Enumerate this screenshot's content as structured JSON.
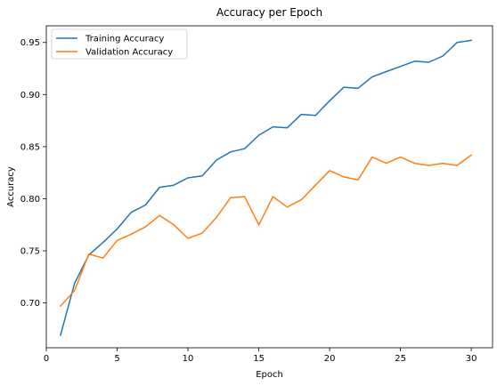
{
  "chart_data": {
    "type": "line",
    "title": "Accuracy per Epoch",
    "xlabel": "Epoch",
    "ylabel": "Accuracy",
    "xlim": [
      0,
      31.5
    ],
    "ylim": [
      0.657,
      0.966
    ],
    "xticks": [
      0,
      5,
      10,
      15,
      20,
      25,
      30
    ],
    "yticks": [
      0.7,
      0.75,
      0.8,
      0.85,
      0.9,
      0.95
    ],
    "grid": false,
    "legend_position": "top-left",
    "x": [
      1,
      2,
      3,
      4,
      5,
      6,
      7,
      8,
      9,
      10,
      11,
      12,
      13,
      14,
      15,
      16,
      17,
      18,
      19,
      20,
      21,
      22,
      23,
      24,
      25,
      26,
      27,
      28,
      29,
      30
    ],
    "series": [
      {
        "name": "Training Accuracy",
        "color": "#1f77b4",
        "values": [
          0.669,
          0.719,
          0.746,
          0.758,
          0.771,
          0.787,
          0.794,
          0.811,
          0.813,
          0.82,
          0.822,
          0.837,
          0.845,
          0.848,
          0.861,
          0.869,
          0.868,
          0.881,
          0.88,
          0.894,
          0.907,
          0.906,
          0.917,
          0.922,
          0.927,
          0.932,
          0.931,
          0.937,
          0.95,
          0.952
        ]
      },
      {
        "name": "Validation Accuracy",
        "color": "#ff7f0e",
        "values": [
          0.697,
          0.712,
          0.747,
          0.743,
          0.76,
          0.766,
          0.773,
          0.784,
          0.775,
          0.762,
          0.767,
          0.782,
          0.801,
          0.802,
          0.775,
          0.802,
          0.792,
          0.799,
          0.813,
          0.827,
          0.821,
          0.818,
          0.84,
          0.834,
          0.84,
          0.834,
          0.832,
          0.834,
          0.832,
          0.842
        ]
      }
    ]
  }
}
